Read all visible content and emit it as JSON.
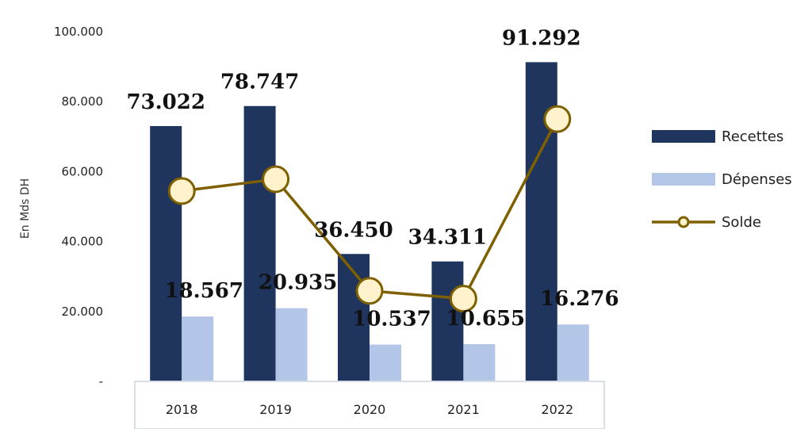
{
  "chart_data": {
    "type": "bar",
    "categories": [
      "2018",
      "2019",
      "2020",
      "2021",
      "2022"
    ],
    "series": [
      {
        "name": "Recettes",
        "kind": "bar",
        "values": [
          73022,
          78747,
          36450,
          34311,
          91292
        ],
        "labels": [
          "73.022",
          "78.747",
          "36.450",
          "34.311",
          "91.292"
        ],
        "color": "#1f355e"
      },
      {
        "name": "Dépenses",
        "kind": "bar",
        "values": [
          18567,
          20935,
          10537,
          10655,
          16276
        ],
        "labels": [
          "18.567",
          "20.935",
          "10.537",
          "10.655",
          "16.276"
        ],
        "color": "#b4c6e7"
      },
      {
        "name": "Solde",
        "kind": "line",
        "values": [
          54455,
          57812,
          25913,
          23656,
          75016
        ],
        "color": "#7f6000",
        "marker_fill": "#fff2cc"
      }
    ],
    "ylabel": "En Mds DH",
    "ylim": [
      0,
      100000
    ],
    "yticks": [
      0,
      20000,
      40000,
      60000,
      80000,
      100000
    ],
    "ytick_labels": [
      "-",
      "20.000",
      "40.000",
      "60.000",
      "80.000",
      "100.000"
    ],
    "grid": false,
    "legend_position": "right"
  }
}
